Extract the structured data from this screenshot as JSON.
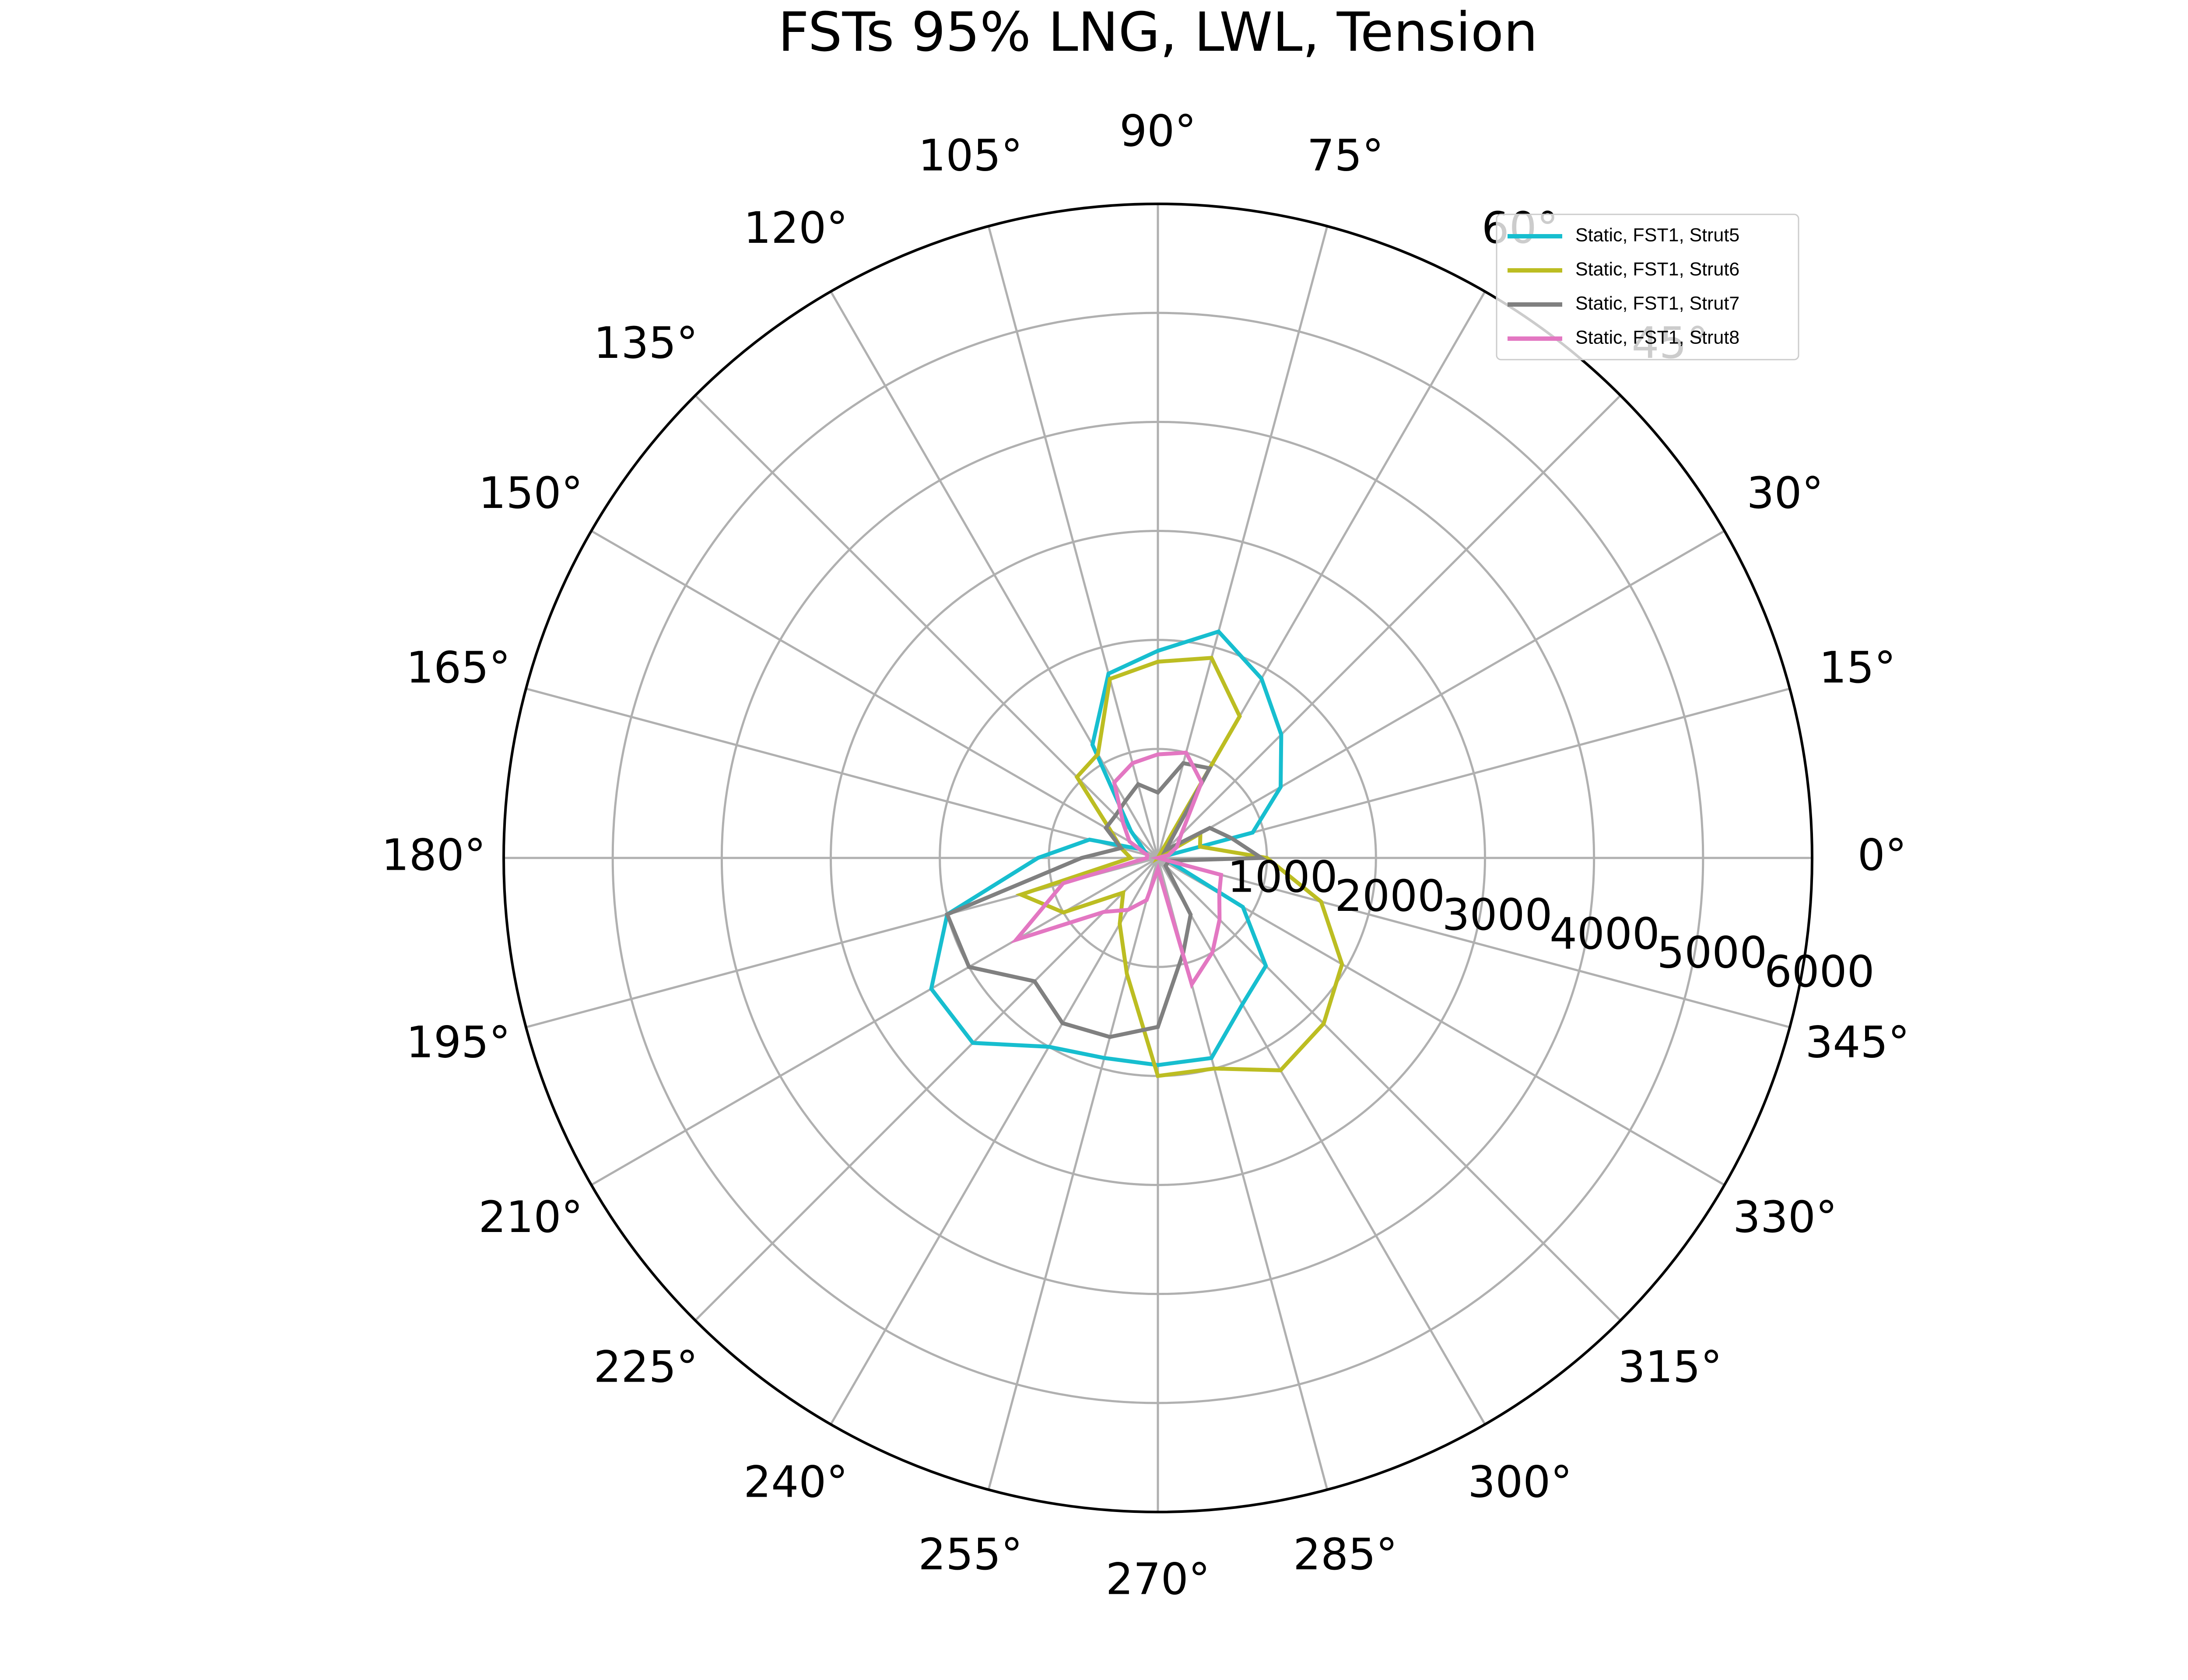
{
  "chart_data": {
    "type": "polar-line",
    "title": "FSTs 95% LNG, LWL, Tension",
    "r_ticks": [
      "1000",
      "2000",
      "3000",
      "4000",
      "5000",
      "6000"
    ],
    "r_max": 6000,
    "theta_tick_labels": [
      "0°",
      "15°",
      "30°",
      "45°",
      "60°",
      "75°",
      "90°",
      "105°",
      "120°",
      "135°",
      "150°",
      "165°",
      "180°",
      "195°",
      "210°",
      "225°",
      "240°",
      "255°",
      "270°",
      "285°",
      "300°",
      "315°",
      "330°",
      "345°"
    ],
    "theta_deg": [
      0,
      15,
      30,
      45,
      60,
      75,
      90,
      105,
      120,
      135,
      150,
      165,
      180,
      195,
      210,
      225,
      240,
      255,
      270,
      285,
      300,
      315,
      330,
      345
    ],
    "legend_position": "upper-right",
    "grid": true,
    "series": [
      {
        "name": "Static, FST1, Strut5",
        "color": "#17becf",
        "values": [
          0,
          900,
          1300,
          1600,
          1900,
          2150,
          1900,
          1750,
          1200,
          350,
          150,
          650,
          1100,
          2000,
          2400,
          2400,
          2000,
          1900,
          1900,
          1900,
          1550,
          1400,
          900,
          100
        ]
      },
      {
        "name": "Static, FST1, Strut6",
        "color": "#bcbd22",
        "values": [
          1000,
          400,
          450,
          0,
          1500,
          1900,
          1800,
          1700,
          1100,
          1050,
          500,
          350,
          250,
          1300,
          1000,
          450,
          700,
          1100,
          2000,
          2000,
          2250,
          2150,
          1950,
          1550
        ]
      },
      {
        "name": "Static, FST1, Strut7",
        "color": "#808080",
        "values": [
          950,
          700,
          550,
          100,
          950,
          900,
          600,
          700,
          600,
          550,
          550,
          350,
          700,
          2000,
          2000,
          1600,
          1750,
          1700,
          1550,
          900,
          600,
          100,
          100,
          100
        ]
      },
      {
        "name": "Static, FST1, Strut8",
        "color": "#e377c2",
        "values": [
          0,
          100,
          200,
          300,
          800,
          1000,
          950,
          900,
          800,
          450,
          300,
          100,
          100,
          900,
          1500,
          700,
          550,
          400,
          100,
          1200,
          1000,
          800,
          650,
          600
        ]
      }
    ]
  }
}
